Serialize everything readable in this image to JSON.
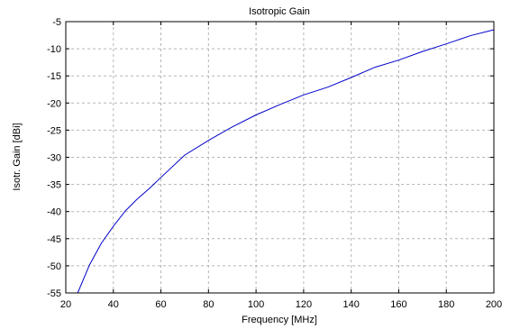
{
  "chart_data": {
    "type": "line",
    "title": "Isotropic Gain",
    "xlabel": "Frequency [MHz]",
    "ylabel": "Isotr. Gain [dBi]",
    "xlim": [
      20,
      200
    ],
    "ylim": [
      -55,
      -5
    ],
    "xticks": [
      20,
      40,
      60,
      80,
      100,
      120,
      140,
      160,
      180,
      200
    ],
    "yticks": [
      -5,
      -10,
      -15,
      -20,
      -25,
      -30,
      -35,
      -40,
      -45,
      -50,
      -55
    ],
    "grid": true,
    "series": [
      {
        "color": "#0000cc",
        "x": [
          25,
          30,
          35,
          40,
          45,
          50,
          55,
          60,
          70,
          80,
          90,
          100,
          110,
          120,
          130,
          140,
          150,
          160,
          170,
          180,
          190,
          200
        ],
        "y": [
          -55.0,
          -49.8,
          -45.8,
          -42.7,
          -39.9,
          -37.7,
          -35.8,
          -33.7,
          -29.6,
          -26.9,
          -24.4,
          -22.2,
          -20.3,
          -18.5,
          -17.1,
          -15.3,
          -13.4,
          -12.1,
          -10.5,
          -9.1,
          -7.6,
          -6.5
        ]
      }
    ]
  }
}
